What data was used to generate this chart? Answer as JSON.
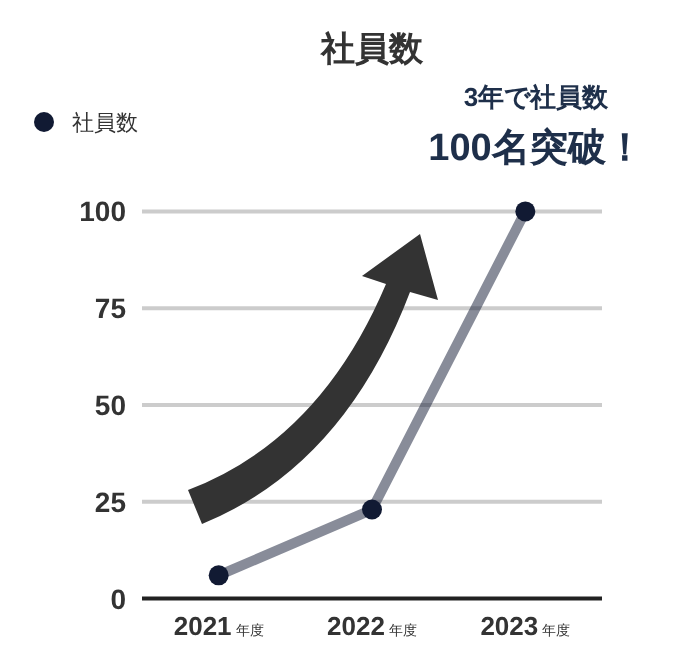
{
  "chart_data": {
    "type": "line",
    "title": "社員数",
    "categories": [
      "2021年度",
      "2022年度",
      "2023年度"
    ],
    "series": [
      {
        "name": "社員数",
        "color": "#111a33",
        "values": [
          6,
          23,
          100
        ]
      }
    ],
    "ylim": [
      0,
      100
    ],
    "yticks": [
      0,
      25,
      50,
      75,
      100
    ],
    "grid": "y",
    "legend": "top left",
    "marker": "circle",
    "annotations": [
      "3年で社員数",
      "100名突破！"
    ]
  }
}
